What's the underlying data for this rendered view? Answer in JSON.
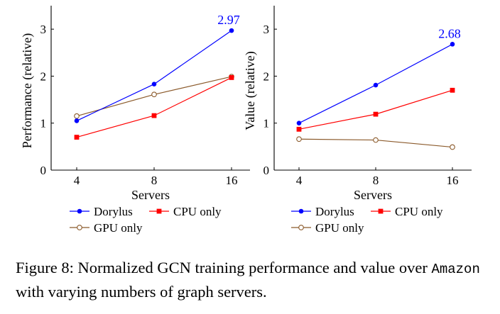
{
  "chart_data": [
    {
      "type": "line",
      "ylabel": "Performance (relative)",
      "xlabel": "Servers",
      "x": [
        4,
        8,
        16
      ],
      "xticks": [
        "4",
        "8",
        "16"
      ],
      "ylim": [
        0,
        3.5
      ],
      "yticks": [
        "0",
        "1",
        "2",
        "3"
      ],
      "grid": false,
      "legend_position": "bottom",
      "series": [
        {
          "name": "Dorylus",
          "values": [
            1.05,
            1.83,
            2.97
          ],
          "color": "#0000ff",
          "marker": "filled-circle"
        },
        {
          "name": "CPU only",
          "values": [
            0.7,
            1.16,
            1.97
          ],
          "color": "#ff0000",
          "marker": "filled-square"
        },
        {
          "name": "GPU only",
          "values": [
            1.15,
            1.61,
            1.99
          ],
          "color": "#8b5a2b",
          "marker": "open-circle"
        }
      ],
      "annotation": {
        "text": "2.97",
        "x": 16,
        "y": 2.97,
        "color": "#0000ff"
      }
    },
    {
      "type": "line",
      "ylabel": "Value (relative)",
      "xlabel": "Servers",
      "x": [
        4,
        8,
        16
      ],
      "xticks": [
        "4",
        "8",
        "16"
      ],
      "ylim": [
        0,
        3.5
      ],
      "yticks": [
        "0",
        "1",
        "2",
        "3"
      ],
      "grid": false,
      "legend_position": "bottom",
      "series": [
        {
          "name": "Dorylus",
          "values": [
            1.0,
            1.81,
            2.68
          ],
          "color": "#0000ff",
          "marker": "filled-circle"
        },
        {
          "name": "CPU only",
          "values": [
            0.87,
            1.19,
            1.7
          ],
          "color": "#ff0000",
          "marker": "filled-square"
        },
        {
          "name": "GPU only",
          "values": [
            0.66,
            0.64,
            0.49
          ],
          "color": "#8b5a2b",
          "marker": "open-circle"
        }
      ],
      "annotation": {
        "text": "2.68",
        "x": 16,
        "y": 2.68,
        "color": "#0000ff"
      }
    }
  ],
  "caption": {
    "label": "Figure 8:",
    "text_before": " Normalized GCN training performance and value over ",
    "code": "Amazon",
    "text_after": " with varying numbers of graph servers."
  }
}
